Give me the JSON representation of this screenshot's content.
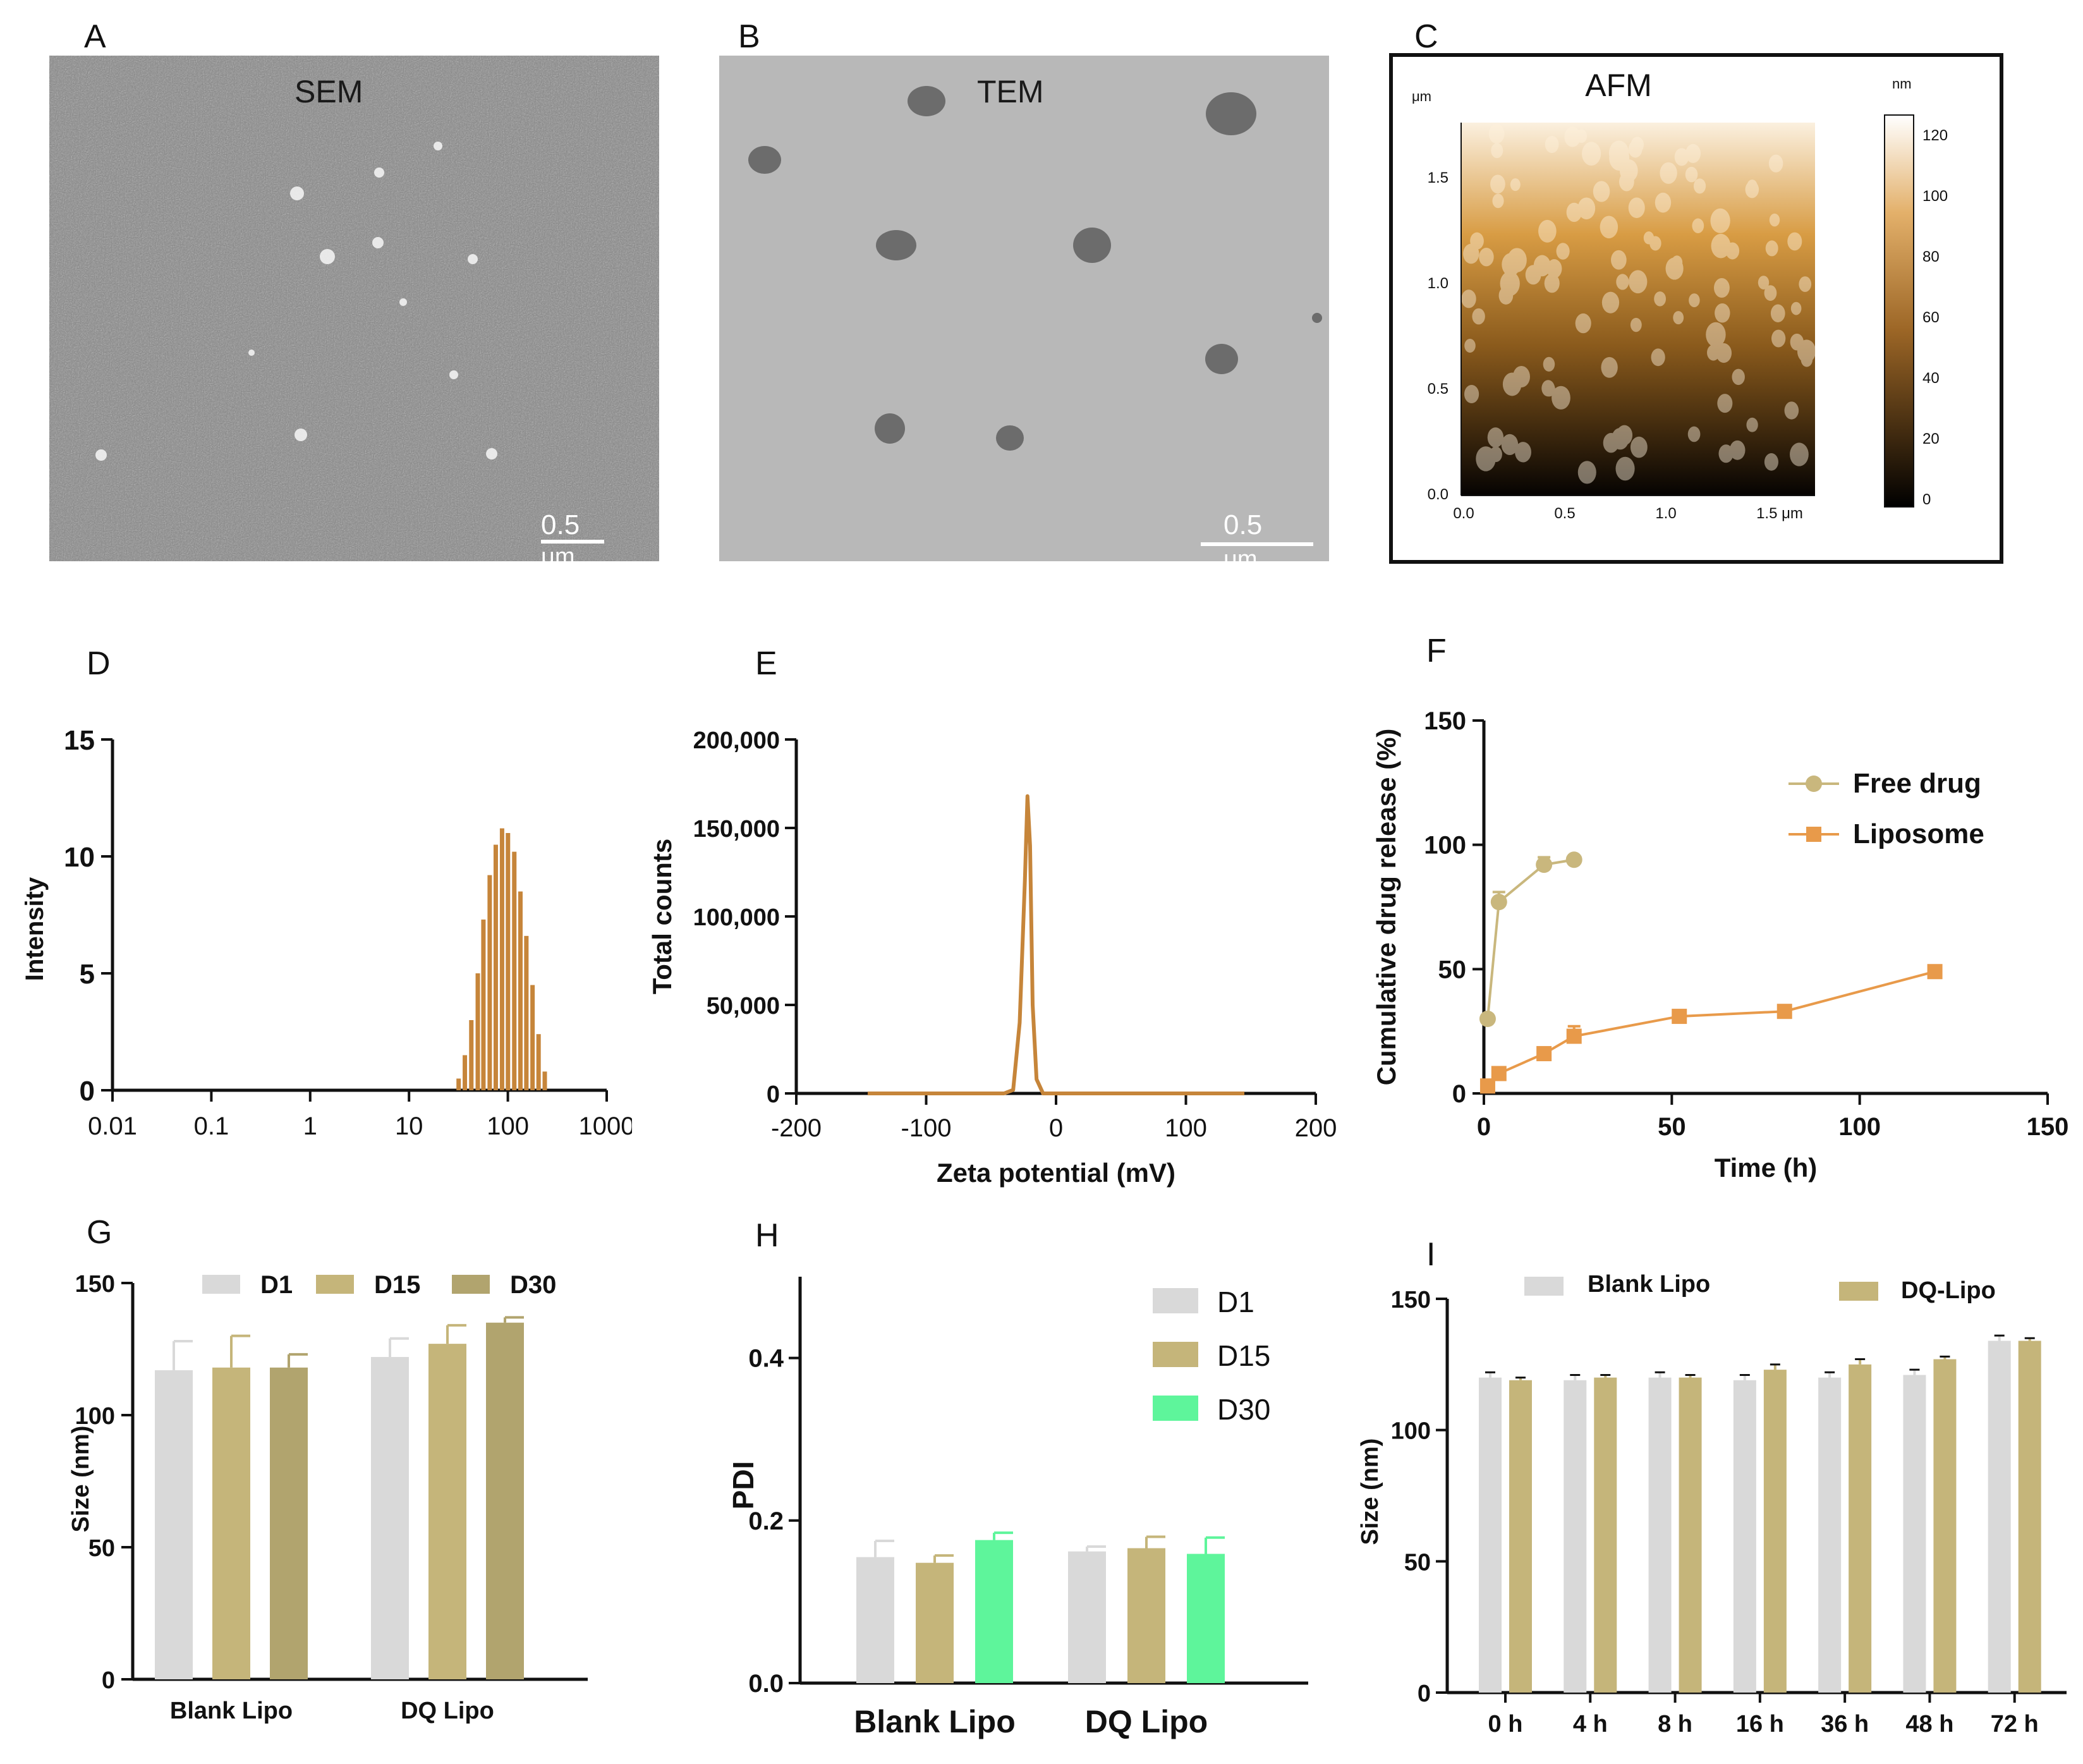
{
  "figure": {
    "panel_letters": [
      "A",
      "B",
      "C",
      "D",
      "E",
      "F",
      "G",
      "H",
      "I"
    ]
  },
  "microscopy": {
    "sem": {
      "title": "SEM",
      "scale": "0.5",
      "unit": "μm"
    },
    "tem": {
      "title": "TEM",
      "scale": "0.5",
      "unit": "μm"
    },
    "afm": {
      "title": "AFM",
      "axis_unit": "μm",
      "colorbar_unit": "nm",
      "y_ticks": [
        "0.0",
        "0.5",
        "1.0",
        "1.5"
      ],
      "x_ticks": [
        "0.0",
        "0.5",
        "1.0",
        "1.5 μm"
      ],
      "colorbar_ticks": [
        "0",
        "20",
        "40",
        "60",
        "80",
        "100",
        "120"
      ]
    }
  },
  "colors": {
    "brown": "#c6853a",
    "free": "#c9b77d",
    "lipo": "#e89a4a",
    "d1": "#d9d9d9",
    "d15": "#c5b57a",
    "d30": "#b1a46e",
    "d30h": "#5ef59b"
  },
  "chart_data": [
    {
      "id": "D",
      "type": "bar",
      "title": "",
      "xlabel": "",
      "ylabel": "Intensity",
      "xscale": "log",
      "xlim": [
        0.01,
        1000
      ],
      "ylim": [
        0,
        15
      ],
      "x_ticks": [
        "0.01",
        "0.1",
        "1",
        "10",
        "100",
        "1000"
      ],
      "y_ticks": [
        "0",
        "5",
        "10",
        "15"
      ],
      "x": [
        32,
        37,
        43,
        50,
        57,
        66,
        76,
        88,
        101,
        117,
        135,
        155,
        179,
        206,
        238
      ],
      "values": [
        0.5,
        1.5,
        3.0,
        5.0,
        7.3,
        9.2,
        10.5,
        11.2,
        11.0,
        10.2,
        8.5,
        6.6,
        4.5,
        2.4,
        0.8
      ]
    },
    {
      "id": "E",
      "type": "line",
      "title": "",
      "xlabel": "Zeta potential (mV)",
      "ylabel": "Total counts",
      "xlim": [
        -200,
        200
      ],
      "ylim": [
        0,
        200000
      ],
      "x_ticks": [
        "-200",
        "-100",
        "0",
        "100",
        "200"
      ],
      "y_ticks": [
        "0",
        "50,000",
        "100,000",
        "150,000",
        "200,000"
      ],
      "x": [
        -145,
        -40,
        -33,
        -28,
        -24,
        -22,
        -20,
        -18,
        -15,
        -10,
        145
      ],
      "y": [
        0,
        0,
        2000,
        40000,
        120000,
        168000,
        140000,
        50000,
        8000,
        0,
        0
      ]
    },
    {
      "id": "F",
      "type": "line",
      "title": "",
      "xlabel": "Time (h)",
      "ylabel": "Cumulative drug release (%)",
      "xlim": [
        0,
        150
      ],
      "ylim": [
        0,
        150
      ],
      "x_ticks": [
        "0",
        "50",
        "100",
        "150"
      ],
      "y_ticks": [
        "0",
        "50",
        "100",
        "150"
      ],
      "legend": [
        "Free drug",
        "Liposome"
      ],
      "series": [
        {
          "name": "Free drug",
          "x": [
            1,
            4,
            16,
            24
          ],
          "y": [
            30,
            77,
            92,
            94
          ],
          "err": [
            0,
            4,
            3,
            1
          ]
        },
        {
          "name": "Liposome",
          "x": [
            1,
            4,
            16,
            24,
            52,
            80,
            120
          ],
          "y": [
            3,
            8,
            16,
            23,
            31,
            33,
            49
          ],
          "err": [
            0,
            1,
            1,
            4,
            1,
            1,
            2
          ]
        }
      ]
    },
    {
      "id": "G",
      "type": "bar",
      "title": "",
      "xlabel": "",
      "ylabel": "Size (nm)",
      "ylim": [
        0,
        150
      ],
      "y_ticks": [
        "0",
        "50",
        "100",
        "150"
      ],
      "categories": [
        "Blank Lipo",
        "DQ Lipo"
      ],
      "series": [
        {
          "name": "D1",
          "values": [
            117,
            122
          ],
          "err": [
            11,
            7
          ]
        },
        {
          "name": "D15",
          "values": [
            118,
            127
          ],
          "err": [
            12,
            7
          ]
        },
        {
          "name": "D30",
          "values": [
            118,
            135
          ],
          "err": [
            5,
            2
          ]
        }
      ]
    },
    {
      "id": "H",
      "type": "bar",
      "title": "",
      "xlabel": "",
      "ylabel": "PDI",
      "ylim": [
        0,
        0.5
      ],
      "y_ticks": [
        "0.0",
        "0.2",
        "0.4"
      ],
      "categories": [
        "Blank Lipo",
        "DQ Lipo"
      ],
      "series": [
        {
          "name": "D1",
          "values": [
            0.155,
            0.162
          ],
          "err": [
            0.02,
            0.006
          ]
        },
        {
          "name": "D15",
          "values": [
            0.148,
            0.166
          ],
          "err": [
            0.009,
            0.014
          ]
        },
        {
          "name": "D30",
          "values": [
            0.176,
            0.159
          ],
          "err": [
            0.009,
            0.02
          ]
        }
      ]
    },
    {
      "id": "I",
      "type": "bar",
      "title": "",
      "xlabel": "",
      "ylabel": "Size (nm)",
      "ylim": [
        0,
        150
      ],
      "y_ticks": [
        "0",
        "50",
        "100",
        "150"
      ],
      "categories": [
        "0 h",
        "4 h",
        "8 h",
        "16 h",
        "36 h",
        "48 h",
        "72 h"
      ],
      "series": [
        {
          "name": "Blank Lipo",
          "values": [
            120,
            119,
            120,
            119,
            120,
            121,
            134
          ],
          "err": [
            2,
            2,
            2,
            2,
            2,
            2,
            2
          ]
        },
        {
          "name": "DQ-Lipo",
          "values": [
            119,
            120,
            120,
            123,
            125,
            127,
            134
          ],
          "err": [
            1,
            1,
            1,
            2,
            2,
            1,
            1
          ]
        }
      ]
    }
  ]
}
